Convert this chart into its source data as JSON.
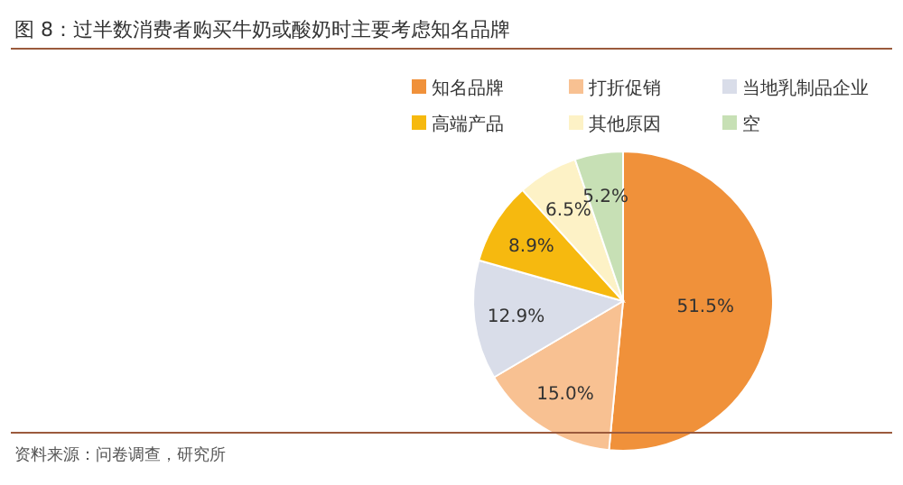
{
  "chart_data": {
    "type": "pie",
    "title": "图 8：过半数消费者购买牛奶或酸奶时主要考虑知名品牌",
    "categories": [
      "知名品牌",
      "打折促销",
      "当地乳制品企业",
      "高端产品",
      "其他原因",
      "空"
    ],
    "values": [
      51.5,
      15.0,
      12.9,
      8.9,
      6.5,
      5.2
    ],
    "value_labels": [
      "51.5%",
      "15.0%",
      "12.9%",
      "8.9%",
      "6.5%",
      "5.2%"
    ],
    "colors": [
      "#f0913a",
      "#f8c192",
      "#d9dde9",
      "#f6b90f",
      "#fdf2c6",
      "#c7e0b5"
    ],
    "legend": "top",
    "annotations": [
      "资料来源：问卷调查，研究所"
    ]
  }
}
